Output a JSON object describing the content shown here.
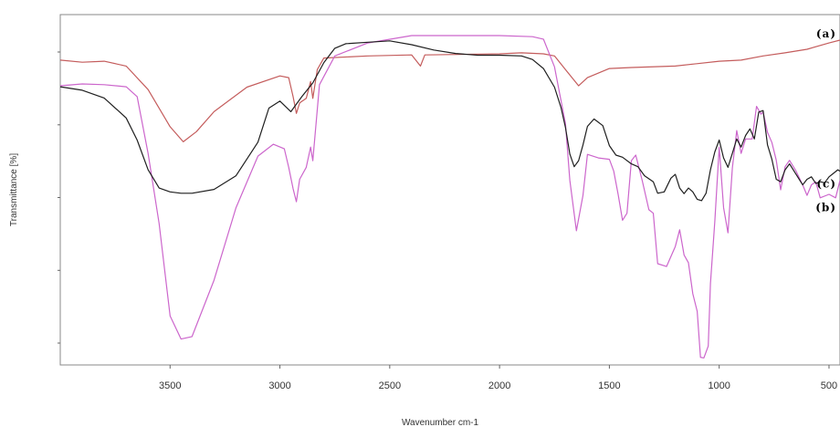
{
  "chart_data": {
    "type": "line",
    "xlabel": "Wavenumber cm-1",
    "ylabel": "Transmittance [%]",
    "xlim": [
      4000,
      450
    ],
    "x_reversed": true,
    "ylim": [
      0,
      100
    ],
    "x_ticks": [
      3500,
      3000,
      2500,
      2000,
      1500,
      1000,
      500
    ],
    "x_tick_labels": [
      "3500",
      "3000",
      "2500",
      "2000",
      "1500",
      "1000",
      "500"
    ],
    "y_tick_count": 5,
    "y_tick_labels_shown": false,
    "grid": false,
    "legend": "none",
    "series": [
      {
        "name": "(a)",
        "color": "#c45c5c",
        "points": [
          [
            4000,
            87.0
          ],
          [
            3900,
            86.4
          ],
          [
            3800,
            86.7
          ],
          [
            3700,
            85.3
          ],
          [
            3600,
            78.6
          ],
          [
            3500,
            68.0
          ],
          [
            3440,
            63.7
          ],
          [
            3380,
            66.6
          ],
          [
            3300,
            72.3
          ],
          [
            3150,
            79.3
          ],
          [
            3000,
            82.5
          ],
          [
            2960,
            82.0
          ],
          [
            2940,
            76.6
          ],
          [
            2925,
            71.8
          ],
          [
            2910,
            74.8
          ],
          [
            2880,
            76.1
          ],
          [
            2860,
            80.9
          ],
          [
            2850,
            76.1
          ],
          [
            2830,
            84.3
          ],
          [
            2800,
            87.6
          ],
          [
            2600,
            88.2
          ],
          [
            2400,
            88.5
          ],
          [
            2360,
            85.3
          ],
          [
            2340,
            88.5
          ],
          [
            2000,
            88.8
          ],
          [
            1900,
            89.1
          ],
          [
            1800,
            88.8
          ],
          [
            1750,
            88.2
          ],
          [
            1700,
            84.3
          ],
          [
            1640,
            79.7
          ],
          [
            1600,
            82.0
          ],
          [
            1500,
            84.6
          ],
          [
            1400,
            84.9
          ],
          [
            1200,
            85.3
          ],
          [
            1000,
            86.7
          ],
          [
            900,
            87.0
          ],
          [
            800,
            88.2
          ],
          [
            700,
            89.1
          ],
          [
            600,
            90.1
          ],
          [
            500,
            91.9
          ],
          [
            450,
            92.7
          ]
        ]
      },
      {
        "name": "(b)",
        "color": "#cc66cc",
        "points": [
          [
            4000,
            79.7
          ],
          [
            3900,
            80.2
          ],
          [
            3800,
            80.0
          ],
          [
            3700,
            79.4
          ],
          [
            3650,
            76.6
          ],
          [
            3600,
            60.4
          ],
          [
            3550,
            40.3
          ],
          [
            3500,
            14.0
          ],
          [
            3450,
            7.4
          ],
          [
            3400,
            8.1
          ],
          [
            3300,
            24.2
          ],
          [
            3200,
            44.9
          ],
          [
            3100,
            59.6
          ],
          [
            3030,
            63.0
          ],
          [
            2980,
            61.7
          ],
          [
            2960,
            56.4
          ],
          [
            2940,
            50.3
          ],
          [
            2925,
            46.6
          ],
          [
            2910,
            53.0
          ],
          [
            2880,
            56.4
          ],
          [
            2860,
            62.2
          ],
          [
            2850,
            58.3
          ],
          [
            2820,
            80.0
          ],
          [
            2750,
            88.2
          ],
          [
            2600,
            91.9
          ],
          [
            2400,
            94.0
          ],
          [
            2000,
            94.0
          ],
          [
            1850,
            93.7
          ],
          [
            1800,
            93.0
          ],
          [
            1750,
            85.1
          ],
          [
            1700,
            68.9
          ],
          [
            1680,
            52.7
          ],
          [
            1650,
            38.3
          ],
          [
            1620,
            48.4
          ],
          [
            1600,
            60.1
          ],
          [
            1550,
            59.1
          ],
          [
            1500,
            58.7
          ],
          [
            1480,
            55.3
          ],
          [
            1460,
            48.7
          ],
          [
            1440,
            41.3
          ],
          [
            1420,
            43.3
          ],
          [
            1400,
            58.3
          ],
          [
            1380,
            59.9
          ],
          [
            1350,
            52.5
          ],
          [
            1320,
            44.3
          ],
          [
            1300,
            43.3
          ],
          [
            1280,
            28.9
          ],
          [
            1240,
            28.1
          ],
          [
            1200,
            33.8
          ],
          [
            1180,
            38.6
          ],
          [
            1160,
            31.4
          ],
          [
            1140,
            29.2
          ],
          [
            1120,
            20.3
          ],
          [
            1100,
            15.3
          ],
          [
            1085,
            2.2
          ],
          [
            1070,
            2.0
          ],
          [
            1050,
            5.4
          ],
          [
            1040,
            23.2
          ],
          [
            1020,
            41.0
          ],
          [
            1000,
            62.2
          ],
          [
            980,
            44.9
          ],
          [
            960,
            37.7
          ],
          [
            940,
            56.2
          ],
          [
            920,
            66.9
          ],
          [
            900,
            60.4
          ],
          [
            880,
            64.5
          ],
          [
            850,
            64.5
          ],
          [
            830,
            73.8
          ],
          [
            810,
            71.6
          ],
          [
            800,
            72.2
          ],
          [
            780,
            66.4
          ],
          [
            760,
            63.5
          ],
          [
            740,
            58.4
          ],
          [
            720,
            50.0
          ],
          [
            700,
            56.6
          ],
          [
            680,
            58.4
          ],
          [
            650,
            55.3
          ],
          [
            620,
            51.4
          ],
          [
            600,
            48.4
          ],
          [
            580,
            51.4
          ],
          [
            560,
            52.3
          ],
          [
            540,
            47.7
          ],
          [
            500,
            48.7
          ],
          [
            470,
            47.7
          ],
          [
            450,
            52.7
          ]
        ]
      },
      {
        "name": "(c)",
        "color": "#1f1f1f",
        "points": [
          [
            4000,
            79.4
          ],
          [
            3900,
            78.4
          ],
          [
            3800,
            76.2
          ],
          [
            3700,
            70.5
          ],
          [
            3650,
            64.2
          ],
          [
            3600,
            55.7
          ],
          [
            3550,
            50.5
          ],
          [
            3500,
            49.4
          ],
          [
            3450,
            49.0
          ],
          [
            3400,
            49.0
          ],
          [
            3300,
            50.1
          ],
          [
            3200,
            54.0
          ],
          [
            3100,
            63.6
          ],
          [
            3050,
            73.3
          ],
          [
            3000,
            75.3
          ],
          [
            2950,
            72.3
          ],
          [
            2900,
            76.6
          ],
          [
            2850,
            80.5
          ],
          [
            2800,
            86.3
          ],
          [
            2750,
            90.4
          ],
          [
            2700,
            91.7
          ],
          [
            2600,
            92.1
          ],
          [
            2500,
            92.5
          ],
          [
            2400,
            91.4
          ],
          [
            2300,
            89.9
          ],
          [
            2200,
            88.9
          ],
          [
            2100,
            88.4
          ],
          [
            2000,
            88.4
          ],
          [
            1900,
            88.2
          ],
          [
            1850,
            87.2
          ],
          [
            1800,
            84.6
          ],
          [
            1750,
            79.3
          ],
          [
            1720,
            73.4
          ],
          [
            1700,
            67.8
          ],
          [
            1680,
            60.2
          ],
          [
            1660,
            56.6
          ],
          [
            1640,
            58.3
          ],
          [
            1620,
            62.8
          ],
          [
            1600,
            68.1
          ],
          [
            1570,
            70.2
          ],
          [
            1530,
            68.3
          ],
          [
            1500,
            62.6
          ],
          [
            1470,
            59.9
          ],
          [
            1440,
            59.3
          ],
          [
            1400,
            57.4
          ],
          [
            1370,
            56.6
          ],
          [
            1340,
            54.0
          ],
          [
            1300,
            52.3
          ],
          [
            1280,
            49.0
          ],
          [
            1250,
            49.4
          ],
          [
            1220,
            53.3
          ],
          [
            1200,
            54.4
          ],
          [
            1180,
            50.5
          ],
          [
            1160,
            48.9
          ],
          [
            1140,
            50.5
          ],
          [
            1120,
            49.4
          ],
          [
            1100,
            47.3
          ],
          [
            1080,
            46.9
          ],
          [
            1060,
            49.0
          ],
          [
            1040,
            55.7
          ],
          [
            1020,
            60.8
          ],
          [
            1000,
            64.2
          ],
          [
            980,
            59.1
          ],
          [
            960,
            56.4
          ],
          [
            940,
            60.4
          ],
          [
            920,
            64.5
          ],
          [
            900,
            62.2
          ],
          [
            880,
            65.5
          ],
          [
            860,
            67.4
          ],
          [
            840,
            64.5
          ],
          [
            820,
            72.2
          ],
          [
            800,
            72.6
          ],
          [
            780,
            62.8
          ],
          [
            760,
            58.7
          ],
          [
            740,
            53.0
          ],
          [
            720,
            52.3
          ],
          [
            700,
            55.7
          ],
          [
            680,
            57.4
          ],
          [
            650,
            54.4
          ],
          [
            620,
            51.4
          ],
          [
            600,
            53.0
          ],
          [
            580,
            53.7
          ],
          [
            560,
            51.8
          ],
          [
            540,
            52.3
          ],
          [
            520,
            52.0
          ],
          [
            500,
            53.7
          ],
          [
            480,
            54.7
          ],
          [
            460,
            55.7
          ],
          [
            450,
            55.3
          ]
        ]
      }
    ]
  }
}
